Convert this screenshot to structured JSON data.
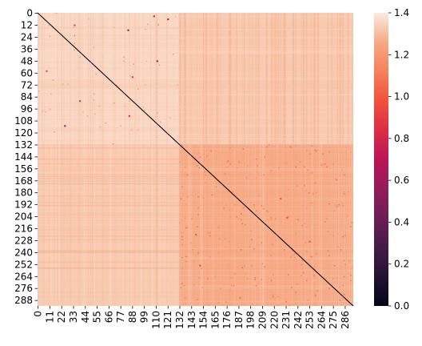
{
  "chart_data": {
    "type": "heatmap",
    "title": "",
    "xlabel": "",
    "ylabel": "",
    "n_rows": 294,
    "n_cols": 294,
    "x_tick_labels": [
      "0",
      "11",
      "22",
      "33",
      "44",
      "55",
      "66",
      "77",
      "88",
      "99",
      "110",
      "121",
      "132",
      "143",
      "154",
      "165",
      "176",
      "187",
      "198",
      "209",
      "220",
      "231",
      "242",
      "253",
      "264",
      "275",
      "286"
    ],
    "y_tick_labels": [
      "0",
      "12",
      "24",
      "36",
      "48",
      "60",
      "72",
      "84",
      "96",
      "108",
      "120",
      "132",
      "144",
      "156",
      "168",
      "180",
      "192",
      "204",
      "216",
      "228",
      "240",
      "252",
      "264",
      "276",
      "288"
    ],
    "diagonal_value": 0.0,
    "block_boundary_index": 132,
    "typical_values": {
      "upper_left_block": 1.36,
      "off_diagonal_blocks": 1.33,
      "lower_right_block": 1.26
    },
    "colorbar": {
      "min": 0.0,
      "max": 1.4,
      "ticks": [
        "0.0",
        "0.2",
        "0.4",
        "0.6",
        "0.8",
        "1.0",
        "1.2",
        "1.4"
      ],
      "colormap": "rocket"
    },
    "outliers": [
      {
        "row": 3,
        "col": 108,
        "value": 0.75
      },
      {
        "row": 6,
        "col": 121,
        "value": 0.6
      },
      {
        "row": 12,
        "col": 34,
        "value": 0.9
      },
      {
        "row": 17,
        "col": 84,
        "value": 0.6
      },
      {
        "row": 48,
        "col": 111,
        "value": 0.55
      },
      {
        "row": 58,
        "col": 8,
        "value": 0.95
      },
      {
        "row": 64,
        "col": 88,
        "value": 0.9
      },
      {
        "row": 88,
        "col": 39,
        "value": 0.85
      },
      {
        "row": 103,
        "col": 85,
        "value": 0.8
      },
      {
        "row": 113,
        "col": 25,
        "value": 0.7
      },
      {
        "row": 186,
        "col": 226,
        "value": 0.95
      },
      {
        "row": 205,
        "col": 232,
        "value": 0.95
      },
      {
        "row": 222,
        "col": 147,
        "value": 1.0
      },
      {
        "row": 229,
        "col": 253,
        "value": 0.95
      },
      {
        "row": 253,
        "col": 151,
        "value": 0.95
      }
    ]
  }
}
